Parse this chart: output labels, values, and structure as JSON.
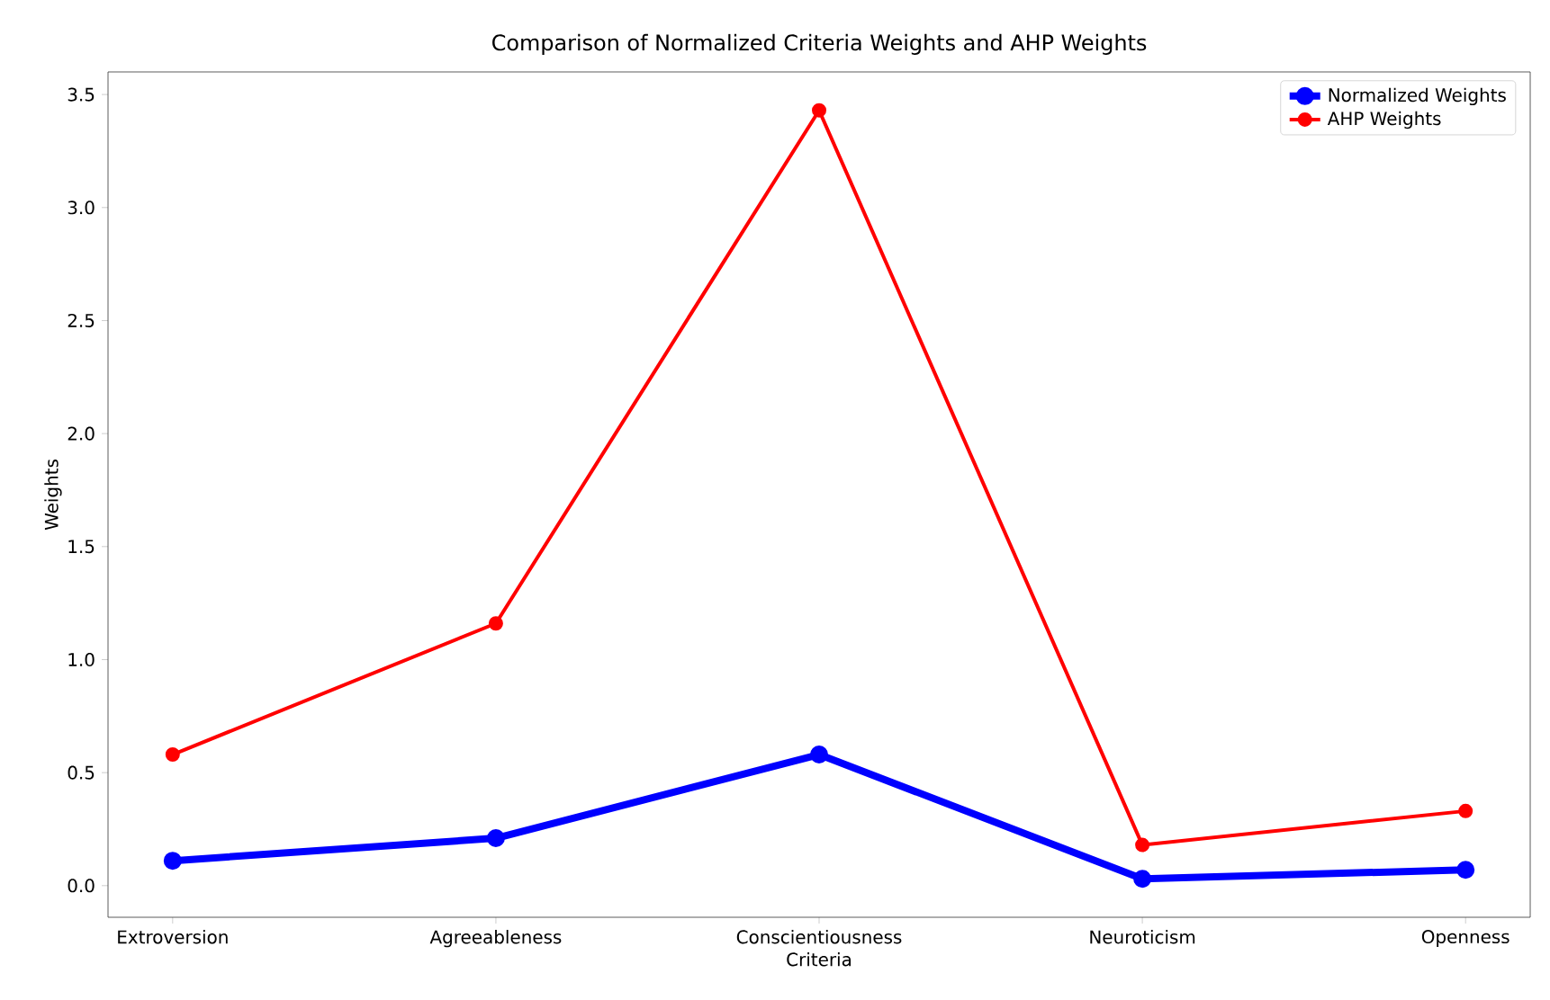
{
  "chart_data": {
    "type": "line",
    "title": "Comparison of Normalized Criteria Weights and AHP Weights",
    "xlabel": "Criteria",
    "ylabel": "Weights",
    "categories": [
      "Extroversion",
      "Agreeableness",
      "Conscientiousness",
      "Neuroticism",
      "Openness"
    ],
    "series": [
      {
        "name": "Normalized Weights",
        "color": "#0000ff",
        "values": [
          0.11,
          0.21,
          0.58,
          0.03,
          0.07
        ]
      },
      {
        "name": "AHP Weights",
        "color": "#ff0000",
        "values": [
          0.58,
          1.16,
          3.43,
          0.18,
          0.33
        ]
      }
    ],
    "ylim": [
      -0.14,
      3.6
    ],
    "yticks": [
      {
        "value": 0,
        "label": "0.0"
      },
      0.5,
      {
        "value": 1,
        "label": "1.0"
      },
      1.5,
      {
        "value": 2,
        "label": "2.0"
      },
      2.5,
      {
        "value": 3,
        "label": "3.0"
      },
      3.5
    ],
    "legend": "top right",
    "marker": "circle",
    "grid": false,
    "line_style": "solid"
  }
}
